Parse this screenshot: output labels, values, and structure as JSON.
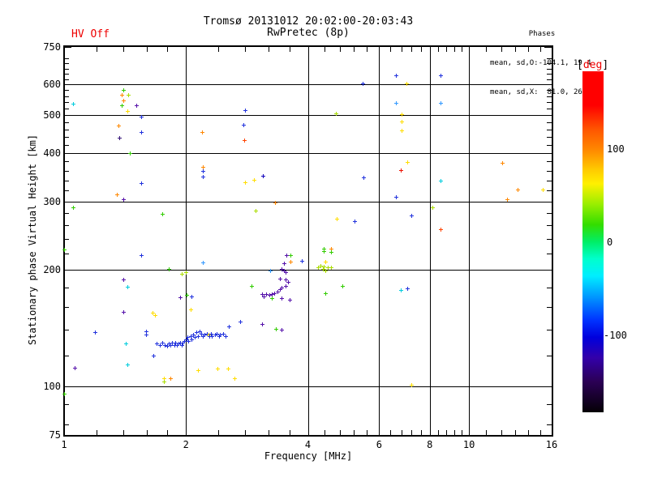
{
  "header": {
    "title": "Tromsø 20131012 20:02:00-20:03:43",
    "subtitle": "RwPretec (8p)",
    "hv_status": "HV Off",
    "phases_title": "Phases",
    "phases_line1": "mean, sd,O:-104.1, 19.4",
    "phases_line2": "mean, sd,X:  81.0, 26.5"
  },
  "chart_data": {
    "type": "scatter",
    "title": "Tromsø 20131012 20:02:00-20:03:43",
    "subtitle": "RwPretec (8p)",
    "xlabel": "Frequency [MHz]",
    "ylabel": "Stationary phase Virtual Height [km]",
    "xscale": "log",
    "yscale": "log",
    "xlim": [
      1,
      16
    ],
    "ylim": [
      75,
      750
    ],
    "grid": true,
    "xticks_labeled": [
      1,
      2,
      4,
      6,
      8,
      10,
      16
    ],
    "xticks_minor": [
      1.2,
      1.4,
      1.6,
      1.8,
      2.4,
      2.8,
      3.2,
      3.6,
      4.4,
      4.8,
      5.2,
      5.6,
      6.4,
      6.8,
      7.2,
      7.6,
      8.4,
      8.8,
      9.2,
      9.6,
      11,
      12,
      13,
      14,
      15
    ],
    "yticks_labeled": [
      750,
      600,
      500,
      400,
      300,
      200,
      100,
      75
    ],
    "yticks_minor": [
      700,
      680,
      660,
      640,
      620,
      580,
      560,
      540,
      520,
      480,
      460,
      440,
      420,
      380,
      360,
      340,
      320,
      280,
      260,
      240,
      220,
      180,
      160,
      140,
      120,
      90,
      80
    ],
    "xgridlines": [
      2,
      4,
      6,
      8,
      10
    ],
    "ygridlines": [
      600,
      500,
      400,
      300,
      200,
      100
    ],
    "colorbar": {
      "bracket_open": "[",
      "unit": "deg",
      "bracket_close": "]",
      "range_deg": [
        -184,
        184
      ],
      "ticks": [
        100,
        0,
        -100
      ],
      "stops": [
        [
          "0%",
          "#ff0000"
        ],
        [
          "10%",
          "#ff0000"
        ],
        [
          "17%",
          "#ff5500"
        ],
        [
          "23%",
          "#ff8800"
        ],
        [
          "29%",
          "#ffcc00"
        ],
        [
          "33%",
          "#fff000"
        ],
        [
          "39%",
          "#99ee00"
        ],
        [
          "45%",
          "#33dd00"
        ],
        [
          "50%",
          "#00ee66"
        ],
        [
          "55%",
          "#00ffcc"
        ],
        [
          "60%",
          "#00eeff"
        ],
        [
          "66%",
          "#0099ff"
        ],
        [
          "73%",
          "#0033ff"
        ],
        [
          "78%",
          "#0000dd"
        ],
        [
          "84%",
          "#3300aa"
        ],
        [
          "91%",
          "#2b0055"
        ],
        [
          "100%",
          "#050005"
        ]
      ]
    },
    "palette": {
      "red": "#ee1100",
      "orangered": "#ff4400",
      "orange": "#ff8800",
      "yellow": "#ffdd00",
      "ygreen": "#aadd00",
      "green": "#33cc00",
      "cyan": "#00ccdd",
      "skyblue": "#3399ff",
      "blue": "#2233dd",
      "navy": "#1100bb",
      "purple": "#5511aa",
      "dkpurple": "#331177"
    },
    "points": [
      [
        1.05,
        535,
        "cyan"
      ],
      [
        1.4,
        580,
        "green"
      ],
      [
        1.39,
        565,
        "orange"
      ],
      [
        1.44,
        565,
        "ygreen"
      ],
      [
        1.4,
        546,
        "orange"
      ],
      [
        1.39,
        530,
        "green"
      ],
      [
        1.51,
        530,
        "purple"
      ],
      [
        1.43,
        514,
        "yellow"
      ],
      [
        1.55,
        497,
        "blue"
      ],
      [
        1.36,
        470,
        "orange"
      ],
      [
        1.55,
        452,
        "blue"
      ],
      [
        1.37,
        437,
        "dkpurple"
      ],
      [
        1.45,
        400,
        "green"
      ],
      [
        1.55,
        335,
        "blue"
      ],
      [
        1.35,
        313,
        "orange"
      ],
      [
        1.4,
        304,
        "purple"
      ],
      [
        1.05,
        290,
        "green"
      ],
      [
        1.75,
        279,
        "green"
      ],
      [
        2.8,
        516,
        "blue"
      ],
      [
        2.77,
        472,
        "blue"
      ],
      [
        2.19,
        452,
        "orange"
      ],
      [
        2.79,
        432,
        "orangered"
      ],
      [
        2.2,
        368,
        "orange"
      ],
      [
        2.2,
        359,
        "blue"
      ],
      [
        2.2,
        347,
        "blue"
      ],
      [
        3.09,
        349,
        "navy"
      ],
      [
        2.8,
        336,
        "yellow"
      ],
      [
        2.94,
        341,
        "yellow"
      ],
      [
        3.32,
        298,
        "orange"
      ],
      [
        2.97,
        284,
        "ygreen"
      ],
      [
        1.55,
        218,
        "blue"
      ],
      [
        2.2,
        209,
        "skyblue"
      ],
      [
        1.81,
        201,
        "green"
      ],
      [
        2.0,
        197,
        "ygreen"
      ],
      [
        1.95,
        195,
        "ygreen"
      ],
      [
        1.4,
        189,
        "purple"
      ],
      [
        1.43,
        181,
        "cyan"
      ],
      [
        1.93,
        170,
        "purple"
      ],
      [
        2.01,
        172,
        "green"
      ],
      [
        2.06,
        171,
        "blue"
      ],
      [
        1.4,
        156,
        "purple"
      ],
      [
        1.65,
        155,
        "yellow"
      ],
      [
        1.68,
        153,
        "yellow"
      ],
      [
        2.05,
        158,
        "yellow"
      ],
      [
        1.59,
        139,
        "blue"
      ],
      [
        1.59,
        136,
        "blue"
      ],
      [
        1.42,
        129,
        "cyan"
      ],
      [
        1.19,
        138,
        "blue"
      ],
      [
        1.0,
        226,
        "green"
      ],
      [
        1.69,
        129,
        "blue"
      ],
      [
        1.72,
        128,
        "blue"
      ],
      [
        1.75,
        130,
        "blue"
      ],
      [
        1.77,
        128,
        "blue"
      ],
      [
        1.8,
        127,
        "blue"
      ],
      [
        1.81,
        129,
        "blue"
      ],
      [
        1.83,
        128,
        "blue"
      ],
      [
        1.85,
        130,
        "blue"
      ],
      [
        1.87,
        128,
        "blue"
      ],
      [
        1.88,
        130,
        "blue"
      ],
      [
        1.9,
        128,
        "blue"
      ],
      [
        1.92,
        129,
        "blue"
      ],
      [
        1.93,
        130,
        "blue"
      ],
      [
        1.95,
        128,
        "blue"
      ],
      [
        1.96,
        130,
        "blue"
      ],
      [
        1.98,
        131,
        "blue"
      ],
      [
        2.01,
        132,
        "blue"
      ],
      [
        2.02,
        134,
        "blue"
      ],
      [
        2.03,
        131,
        "blue"
      ],
      [
        2.05,
        135,
        "blue"
      ],
      [
        2.06,
        132,
        "blue"
      ],
      [
        2.08,
        136,
        "blue"
      ],
      [
        2.1,
        134,
        "blue"
      ],
      [
        2.12,
        138,
        "blue"
      ],
      [
        2.14,
        135,
        "blue"
      ],
      [
        2.16,
        139,
        "blue"
      ],
      [
        2.18,
        137,
        "blue"
      ],
      [
        2.2,
        135,
        "blue"
      ],
      [
        2.22,
        136,
        "blue"
      ],
      [
        2.25,
        137,
        "blue"
      ],
      [
        2.27,
        136,
        "yellow"
      ],
      [
        2.28,
        135,
        "blue"
      ],
      [
        2.3,
        137,
        "blue"
      ],
      [
        2.32,
        135,
        "blue"
      ],
      [
        2.36,
        136,
        "blue"
      ],
      [
        2.38,
        137,
        "blue"
      ],
      [
        2.41,
        135,
        "blue"
      ],
      [
        2.43,
        136,
        "blue"
      ],
      [
        2.47,
        137,
        "blue"
      ],
      [
        2.5,
        135,
        "blue"
      ],
      [
        2.55,
        143,
        "blue"
      ],
      [
        2.72,
        147,
        "blue"
      ],
      [
        3.54,
        218,
        "purple"
      ],
      [
        3.63,
        218,
        "green"
      ],
      [
        3.49,
        208,
        "purple"
      ],
      [
        3.63,
        210,
        "orange"
      ],
      [
        3.86,
        211,
        "blue"
      ],
      [
        3.45,
        201,
        "purple"
      ],
      [
        3.49,
        199,
        "purple"
      ],
      [
        3.52,
        197,
        "purple"
      ],
      [
        3.23,
        199,
        "skyblue"
      ],
      [
        3.41,
        190,
        "purple"
      ],
      [
        3.53,
        189,
        "purple"
      ],
      [
        3.57,
        186,
        "purple"
      ],
      [
        3.52,
        182,
        "purple"
      ],
      [
        3.45,
        180,
        "purple"
      ],
      [
        3.41,
        178,
        "purple"
      ],
      [
        3.36,
        176,
        "purple"
      ],
      [
        3.3,
        174,
        "purple"
      ],
      [
        3.26,
        173,
        "purple"
      ],
      [
        3.21,
        172,
        "purple"
      ],
      [
        3.15,
        173,
        "purple"
      ],
      [
        3.11,
        171,
        "purple"
      ],
      [
        3.08,
        173,
        "purple"
      ],
      [
        3.26,
        169,
        "green"
      ],
      [
        3.45,
        169,
        "purple"
      ],
      [
        3.6,
        167,
        "purple"
      ],
      [
        2.9,
        182,
        "green"
      ],
      [
        3.08,
        145,
        "purple"
      ],
      [
        3.33,
        141,
        "green"
      ],
      [
        3.45,
        140,
        "purple"
      ],
      [
        4.38,
        227,
        "green"
      ],
      [
        4.56,
        227,
        "orange"
      ],
      [
        4.38,
        223,
        "green"
      ],
      [
        4.56,
        222,
        "green"
      ],
      [
        4.41,
        210,
        "yellow"
      ],
      [
        4.29,
        205,
        "ygreen"
      ],
      [
        4.38,
        204,
        "ygreen"
      ],
      [
        4.47,
        203,
        "ygreen"
      ],
      [
        4.56,
        203,
        "ygreen"
      ],
      [
        4.35,
        201,
        "ygreen"
      ],
      [
        4.41,
        199,
        "ygreen"
      ],
      [
        4.23,
        203,
        "ygreen"
      ],
      [
        4.87,
        182,
        "green"
      ],
      [
        4.41,
        174,
        "green"
      ],
      [
        6.77,
        177,
        "cyan"
      ],
      [
        7.05,
        179,
        "blue"
      ],
      [
        6.59,
        634,
        "blue"
      ],
      [
        5.45,
        604,
        "blue"
      ],
      [
        7.0,
        604,
        "yellow"
      ],
      [
        8.52,
        634,
        "blue"
      ],
      [
        8.52,
        538,
        "skyblue"
      ],
      [
        6.59,
        538,
        "skyblue"
      ],
      [
        4.68,
        506,
        "ygreen"
      ],
      [
        6.81,
        503,
        "yellow"
      ],
      [
        6.81,
        482,
        "yellow"
      ],
      [
        6.81,
        457,
        "yellow"
      ],
      [
        7.05,
        379,
        "yellow"
      ],
      [
        6.77,
        361,
        "red"
      ],
      [
        5.49,
        346,
        "blue"
      ],
      [
        6.59,
        308,
        "blue"
      ],
      [
        12.08,
        378,
        "orange"
      ],
      [
        13.18,
        322,
        "orange"
      ],
      [
        15.22,
        322,
        "yellow"
      ],
      [
        12.43,
        304,
        "orange"
      ],
      [
        8.52,
        339,
        "cyan"
      ],
      [
        8.52,
        254,
        "orangered"
      ],
      [
        8.13,
        290,
        "ygreen"
      ],
      [
        7.19,
        276,
        "blue"
      ],
      [
        4.71,
        271,
        "yellow"
      ],
      [
        5.22,
        267,
        "blue"
      ],
      [
        7.19,
        101,
        "yellow"
      ],
      [
        1.66,
        120,
        "blue"
      ],
      [
        1.43,
        114,
        "cyan"
      ],
      [
        1.06,
        112,
        "purple"
      ],
      [
        1.76,
        105,
        "yellow"
      ],
      [
        1.76,
        103,
        "ygreen"
      ],
      [
        1.83,
        105,
        "orange"
      ],
      [
        2.14,
        110,
        "yellow"
      ],
      [
        2.39,
        111,
        "yellow"
      ],
      [
        2.54,
        111,
        "yellow"
      ],
      [
        2.64,
        105,
        "yellow"
      ],
      [
        1.0,
        96,
        "green"
      ]
    ]
  }
}
